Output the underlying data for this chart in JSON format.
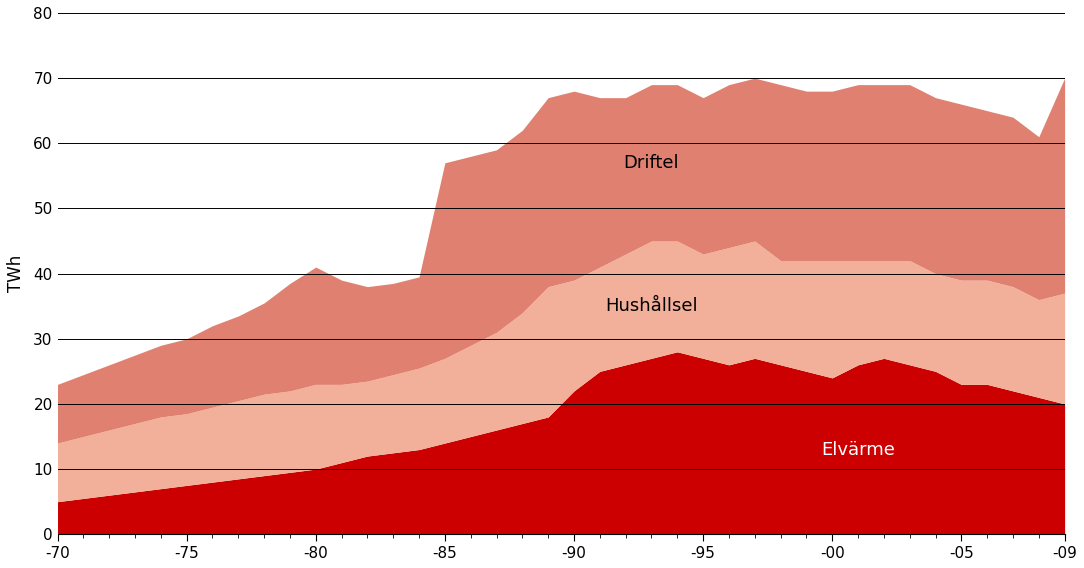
{
  "years": [
    1970,
    1971,
    1972,
    1973,
    1974,
    1975,
    1976,
    1977,
    1978,
    1979,
    1980,
    1981,
    1982,
    1983,
    1984,
    1985,
    1986,
    1987,
    1988,
    1989,
    1990,
    1991,
    1992,
    1993,
    1994,
    1995,
    1996,
    1997,
    1998,
    1999,
    2000,
    2001,
    2002,
    2003,
    2004,
    2005,
    2006,
    2007,
    2008,
    2009
  ],
  "elvarme": [
    5.0,
    5.5,
    6.0,
    6.5,
    7.0,
    7.5,
    8.0,
    8.5,
    9.0,
    9.5,
    10.0,
    11.0,
    12.0,
    12.5,
    13.0,
    14.0,
    15.0,
    16.0,
    17.0,
    18.0,
    22.0,
    25.0,
    26.0,
    27.0,
    28.0,
    27.0,
    26.0,
    27.0,
    26.0,
    25.0,
    24.0,
    26.0,
    27.0,
    26.0,
    25.0,
    23.0,
    23.0,
    22.0,
    21.0,
    20.0
  ],
  "hushallsel": [
    9.0,
    9.5,
    10.0,
    10.5,
    11.0,
    11.0,
    11.5,
    12.0,
    12.5,
    12.5,
    13.0,
    12.0,
    11.5,
    12.0,
    12.5,
    13.0,
    14.0,
    15.0,
    17.0,
    20.0,
    17.0,
    16.0,
    17.0,
    18.0,
    17.0,
    16.0,
    18.0,
    18.0,
    16.0,
    17.0,
    18.0,
    16.0,
    15.0,
    16.0,
    15.0,
    16.0,
    16.0,
    16.0,
    15.0,
    17.0
  ],
  "driftel": [
    9.0,
    9.5,
    10.0,
    10.5,
    11.0,
    11.5,
    12.5,
    13.0,
    14.0,
    16.5,
    18.0,
    16.0,
    14.5,
    14.0,
    14.0,
    30.0,
    29.0,
    28.0,
    28.0,
    29.0,
    29.0,
    26.0,
    24.0,
    24.0,
    24.0,
    24.0,
    25.0,
    25.0,
    27.0,
    26.0,
    26.0,
    27.0,
    27.0,
    27.0,
    27.0,
    27.0,
    26.0,
    26.0,
    25.0,
    33.0
  ],
  "xtick_labels": [
    "-70",
    "-75",
    "-80",
    "-85",
    "-90",
    "-95",
    "-00",
    "-05",
    "-09"
  ],
  "xtick_years": [
    1970,
    1975,
    1980,
    1985,
    1990,
    1995,
    2000,
    2005,
    2009
  ],
  "color_elvarme": "#cc0000",
  "color_hushallsel": "#f2b09a",
  "color_driftel": "#e08070",
  "ylabel": "TWh",
  "ylim": [
    0,
    80
  ],
  "yticks": [
    0,
    10,
    20,
    30,
    40,
    50,
    60,
    70,
    80
  ],
  "bg_color": "#ffffff",
  "label_hushallsel": "Hushållsel",
  "label_driftel": "Driftel",
  "label_elvarme_color": "#ffffff",
  "label_hushallsel_color": "#000000",
  "label_driftel_color": "#000000"
}
